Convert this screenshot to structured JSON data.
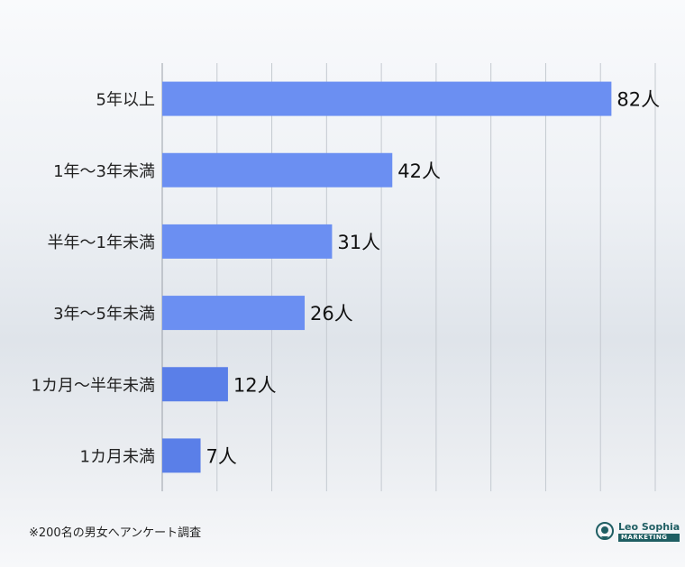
{
  "chart_data": {
    "type": "bar",
    "orientation": "horizontal",
    "categories": [
      "5年以上",
      "1年〜3年未満",
      "半年〜1年未満",
      "3年〜5年未満",
      "1カ月〜半年未満",
      "1カ月未満"
    ],
    "values": [
      82,
      42,
      31,
      26,
      12,
      7
    ],
    "value_suffix": "人",
    "xlim": [
      0,
      90
    ],
    "grid": true,
    "bar_color": "#6b8ff2",
    "bar_color_small": "#5a7fe8"
  },
  "footnote": "※200名の男女へアンケート調査",
  "logo": {
    "brand": "Leo Sophia",
    "sub": "MARKETING",
    "color": "#1f5e63"
  }
}
